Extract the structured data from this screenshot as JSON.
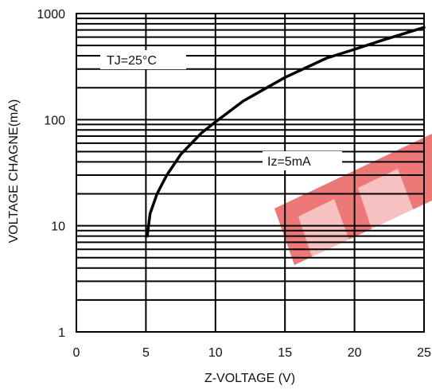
{
  "chart_data": {
    "type": "line",
    "title": "",
    "xlabel": "Z-VOLTAGE (V)",
    "ylabel": "VOLTAGE CHAGNE(mA)",
    "xlim": [
      0,
      25
    ],
    "ylim": [
      1,
      1000
    ],
    "yscale": "log",
    "grid": true,
    "x_ticks": [
      "0",
      "5",
      "10",
      "15",
      "20",
      "25"
    ],
    "y_ticks": [
      "1",
      "10",
      "100",
      "1000"
    ],
    "series": [
      {
        "x": [
          5.1,
          5.3,
          5.8,
          6.5,
          7.5,
          9,
          10,
          12,
          15,
          18,
          20,
          22,
          25
        ],
        "values": [
          8,
          13,
          20,
          30,
          47,
          75,
          95,
          150,
          250,
          380,
          460,
          560,
          740
        ]
      }
    ],
    "annotations": [
      "TJ=25°C",
      "Iz=5mA"
    ],
    "colors": {
      "line": "#000000",
      "watermark": "#e53935"
    }
  }
}
